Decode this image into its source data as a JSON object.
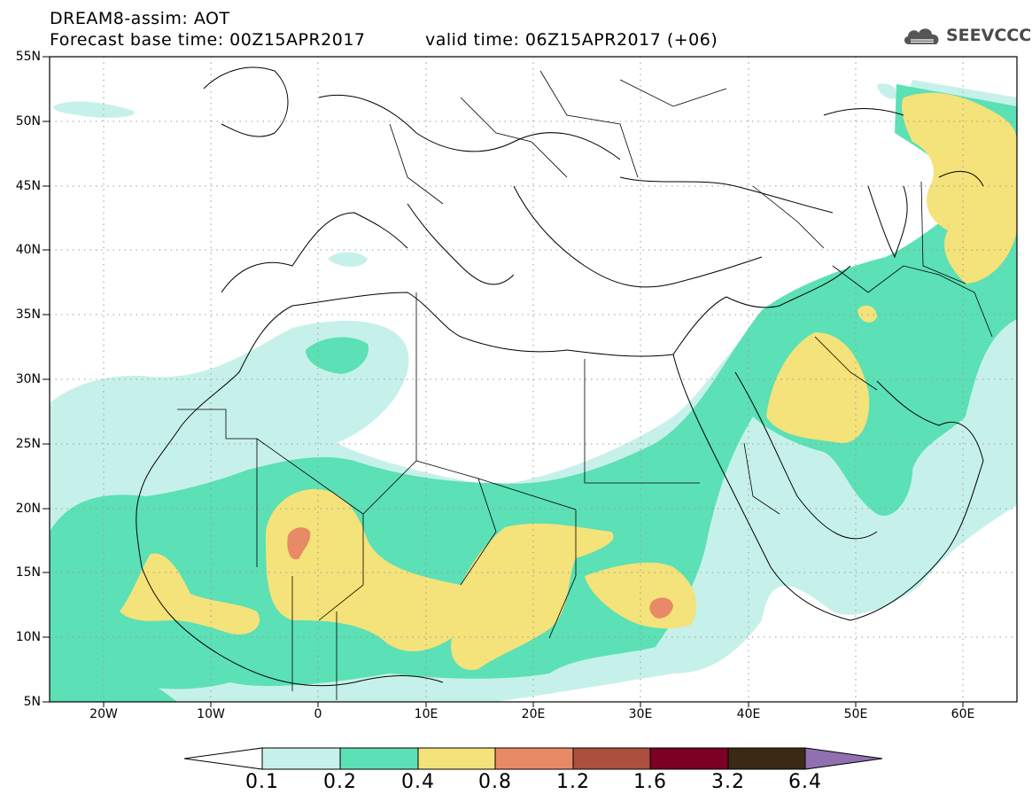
{
  "header": {
    "title": "DREAM8-assim: AOT",
    "base_time": "Forecast base time: 00Z15APR2017",
    "valid_time": "valid time: 06Z15APR2017 (+06)"
  },
  "logo": {
    "text": "SEEVCCC",
    "icon": "cloud-icon"
  },
  "map": {
    "lat_labels": [
      "55N",
      "50N",
      "45N",
      "40N",
      "35N",
      "30N",
      "25N",
      "20N",
      "15N",
      "10N",
      "5N"
    ],
    "lon_labels": [
      "20W",
      "10W",
      "0",
      "10E",
      "20E",
      "30E",
      "40E",
      "50E",
      "60E"
    ]
  },
  "colorbar": {
    "labels": [
      "0.1",
      "0.2",
      "0.4",
      "0.8",
      "1.2",
      "1.6",
      "3.2",
      "6.4"
    ],
    "colors": {
      "below": "#ffffff",
      "c1": "#c6f1ea",
      "c2": "#5ce0b5",
      "c3": "#f4e27a",
      "c4": "#e88a66",
      "c5": "#ad4f3e",
      "c6": "#7a0024",
      "c7": "#3a2a14",
      "above": "#9070b0"
    }
  }
}
